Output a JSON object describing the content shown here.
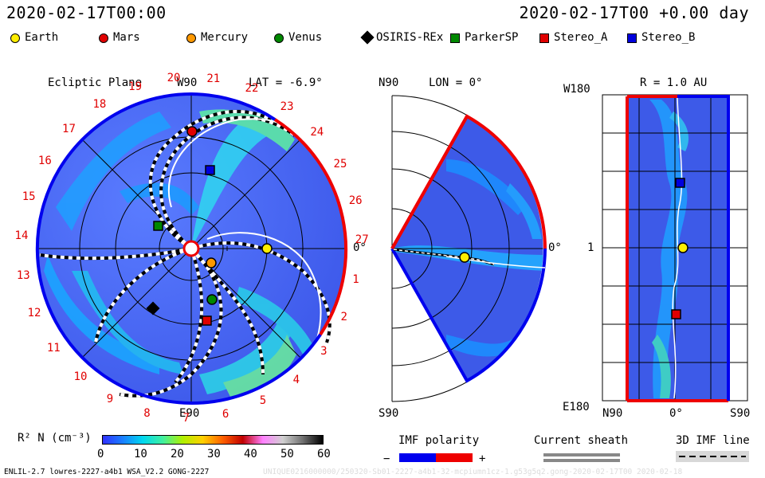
{
  "header": {
    "datetime_left": "2020-02-17T00:00",
    "datetime_right": "2020-02-17T00 +0.00 day"
  },
  "legend": [
    {
      "label": "Earth",
      "shape": "circle",
      "color": "#ffee00"
    },
    {
      "label": "Mars",
      "shape": "circle",
      "color": "#e00000"
    },
    {
      "label": "Mercury",
      "shape": "circle",
      "color": "#ff9900"
    },
    {
      "label": "Venus",
      "shape": "circle",
      "color": "#008800"
    },
    {
      "label": "OSIRIS-REx",
      "shape": "diamond",
      "color": "#000000"
    },
    {
      "label": "ParkerSP",
      "shape": "square",
      "color": "#008800"
    },
    {
      "label": "Stereo_A",
      "shape": "square",
      "color": "#e00000"
    },
    {
      "label": "Stereo_B",
      "shape": "square",
      "color": "#0000dd"
    }
  ],
  "ecliptic": {
    "title": "Ecliptic Plane",
    "lat_label": "LAT = -6.9°",
    "top_label": "W90",
    "bottom_label": "E90",
    "right_label": "0°",
    "carrington_numbers": [
      "20",
      "21",
      "22",
      "23",
      "24",
      "25",
      "26",
      "27",
      "1",
      "2",
      "3",
      "4",
      "5",
      "6",
      "7",
      "8",
      "9",
      "10",
      "11",
      "12",
      "13",
      "14",
      "15",
      "16",
      "17",
      "18",
      "19"
    ]
  },
  "meridional": {
    "lon_label": "LON = 0°",
    "top_label": "N90",
    "bottom_label": "S90",
    "right_label": "0°"
  },
  "radial": {
    "title": "R = 1.0 AU",
    "top_label": "W180",
    "bottom_label": "E180",
    "mid_label": "1",
    "x_left": "N90",
    "x_mid": "0°",
    "x_right": "S90"
  },
  "colorbar": {
    "label": "R² N (cm⁻³)",
    "ticks": [
      "0",
      "10",
      "20",
      "30",
      "40",
      "50",
      "60"
    ],
    "colors": [
      "#3030ff",
      "#1a7fff",
      "#00d8f0",
      "#40f0a0",
      "#b0f000",
      "#ffd000",
      "#ff6000",
      "#c00000",
      "#ff80ff",
      "#d0d0d0",
      "#707070",
      "#000000"
    ]
  },
  "imf_polarity": {
    "label": "IMF polarity",
    "minus": "−",
    "plus": "+",
    "neg_color": "#0000ee",
    "pos_color": "#ee0000"
  },
  "current_sheath": {
    "label": "Current sheath"
  },
  "imf_line": {
    "label": "3D IMF line"
  },
  "footer": {
    "left": "ENLIL-2.7 lowres-2227-a4b1 WSA_V2.2 GONG-2227",
    "right": "UNIQUE0216000000/250320-Sb01-2227-a4b1-32-mcpiumn1cz-1.g53g5q2.gong-2020-02-17T00 2020-02-18"
  }
}
